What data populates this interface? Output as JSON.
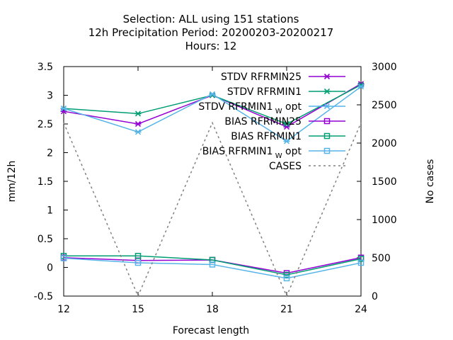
{
  "title_lines": [
    "Selection: ALL using   151 stations",
    "12h Precipitation    Period: 20200203-20200217",
    "Hours:  12"
  ],
  "colors": {
    "purple": "#9400d3",
    "green": "#009e73",
    "blue": "#56b4e9",
    "gray": "#808080"
  },
  "chart_data": {
    "type": "line",
    "x": [
      12,
      15,
      18,
      21,
      24
    ],
    "xlabel": "Forecast length",
    "ylabel": "mm/12h",
    "y2label": "No cases",
    "xlim": [
      12,
      24
    ],
    "ylim": [
      -0.5,
      3.5
    ],
    "y2lim": [
      0,
      3000
    ],
    "x_ticks": [
      "12",
      "15",
      "18",
      "21",
      "24"
    ],
    "y_ticks": [
      "-0.5",
      "0",
      "0.5",
      "1",
      "1.5",
      "2",
      "2.5",
      "3",
      "3.5"
    ],
    "y2_ticks": [
      "0",
      "500",
      "1000",
      "1500",
      "2000",
      "2500",
      "3000"
    ],
    "grid": false,
    "legend_position": "top-right",
    "series": [
      {
        "name": "STDV RFRMIN25",
        "sub": "",
        "name_after": "",
        "axis": "y",
        "color": "#9400d3",
        "marker": "x-star",
        "dash": "",
        "values": [
          2.72,
          2.5,
          3.0,
          2.45,
          3.2
        ]
      },
      {
        "name": "STDV RFRMIN1",
        "sub": "",
        "name_after": "",
        "axis": "y",
        "color": "#009e73",
        "marker": "x-star",
        "dash": "",
        "values": [
          2.77,
          2.68,
          3.0,
          2.5,
          3.18
        ]
      },
      {
        "name": "STDV RFRMIN1",
        "sub": "W",
        "name_after": " opt",
        "axis": "y",
        "color": "#56b4e9",
        "marker": "x-star",
        "dash": "",
        "values": [
          2.77,
          2.36,
          3.02,
          2.2,
          3.15
        ]
      },
      {
        "name": "BIAS RFRMIN25",
        "sub": "",
        "name_after": "",
        "axis": "y",
        "color": "#9400d3",
        "marker": "square",
        "dash": "",
        "values": [
          0.17,
          0.12,
          0.13,
          -0.1,
          0.17
        ]
      },
      {
        "name": "BIAS RFRMIN1",
        "sub": "",
        "name_after": "",
        "axis": "y",
        "color": "#009e73",
        "marker": "square",
        "dash": "",
        "values": [
          0.2,
          0.2,
          0.13,
          -0.13,
          0.15
        ]
      },
      {
        "name": "BIAS RFRMIN1",
        "sub": "W",
        "name_after": " opt",
        "axis": "y",
        "color": "#56b4e9",
        "marker": "square",
        "dash": "",
        "values": [
          0.16,
          0.08,
          0.05,
          -0.19,
          0.08
        ]
      },
      {
        "name": "CASES",
        "sub": "",
        "name_after": "",
        "axis": "y2",
        "color": "#808080",
        "marker": "none",
        "dash": "3,4",
        "values": [
          2265,
          0,
          2265,
          0,
          2265
        ]
      }
    ]
  }
}
